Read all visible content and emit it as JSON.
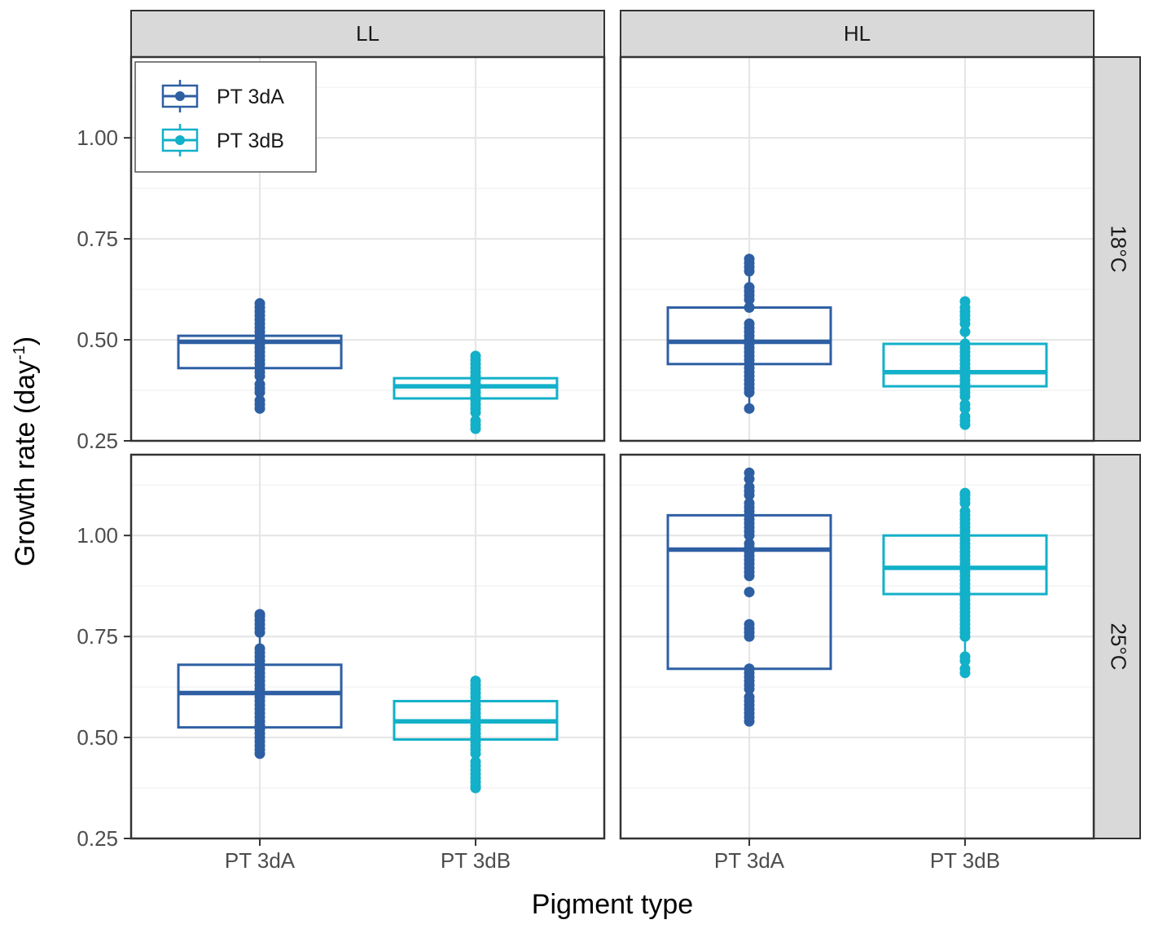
{
  "chart_data": {
    "type": "boxplot",
    "xlabel": "Pigment type",
    "ylabel_main": "Growth rate (day",
    "ylabel_sup": "-1",
    "ylabel_tail": ")",
    "y_ticks": [
      "0.25",
      "0.50",
      "0.75",
      "1.00"
    ],
    "y_tick_values": [
      0.25,
      0.5,
      0.75,
      1.0
    ],
    "categories": [
      "PT 3dA",
      "PT 3dB"
    ],
    "column_facets": [
      "LL",
      "HL"
    ],
    "row_facets": [
      "18°C",
      "25°C"
    ],
    "legend": [
      {
        "label": "PT 3dA",
        "color": "#2e5fa3"
      },
      {
        "label": "PT 3dB",
        "color": "#12b0c9"
      }
    ],
    "panels": [
      {
        "light": "LL",
        "temp": "18°C",
        "ylim": [
          0.25,
          1.2
        ],
        "groups": [
          {
            "category": "PT 3dA",
            "q1": 0.43,
            "median": 0.495,
            "q3": 0.51,
            "whisker_low": 0.33,
            "whisker_high": 0.59,
            "points": [
              0.33,
              0.34,
              0.35,
              0.37,
              0.38,
              0.39,
              0.41,
              0.42,
              0.43,
              0.44,
              0.45,
              0.46,
              0.47,
              0.48,
              0.49,
              0.5,
              0.51,
              0.52,
              0.53,
              0.54,
              0.55,
              0.56,
              0.57,
              0.58,
              0.59
            ]
          },
          {
            "category": "PT 3dB",
            "q1": 0.355,
            "median": 0.385,
            "q3": 0.405,
            "whisker_low": 0.28,
            "whisker_high": 0.46,
            "points": [
              0.28,
              0.29,
              0.3,
              0.32,
              0.33,
              0.34,
              0.35,
              0.36,
              0.37,
              0.38,
              0.39,
              0.4,
              0.41,
              0.42,
              0.43,
              0.44,
              0.45,
              0.46
            ]
          }
        ]
      },
      {
        "light": "HL",
        "temp": "18°C",
        "ylim": [
          0.25,
          1.2
        ],
        "groups": [
          {
            "category": "PT 3dA",
            "q1": 0.44,
            "median": 0.495,
            "q3": 0.58,
            "whisker_low": 0.33,
            "whisker_high": 0.7,
            "points": [
              0.33,
              0.37,
              0.38,
              0.39,
              0.4,
              0.41,
              0.42,
              0.43,
              0.44,
              0.45,
              0.46,
              0.47,
              0.48,
              0.49,
              0.5,
              0.51,
              0.52,
              0.53,
              0.54,
              0.58,
              0.6,
              0.61,
              0.62,
              0.63,
              0.67,
              0.68,
              0.69,
              0.7
            ]
          },
          {
            "category": "PT 3dB",
            "q1": 0.385,
            "median": 0.42,
            "q3": 0.49,
            "whisker_low": 0.29,
            "whisker_high": 0.595,
            "points": [
              0.29,
              0.3,
              0.31,
              0.33,
              0.34,
              0.36,
              0.37,
              0.38,
              0.39,
              0.4,
              0.41,
              0.42,
              0.43,
              0.44,
              0.45,
              0.46,
              0.47,
              0.48,
              0.49,
              0.52,
              0.54,
              0.55,
              0.56,
              0.57,
              0.58,
              0.595
            ]
          }
        ]
      },
      {
        "light": "LL",
        "temp": "25°C",
        "ylim": [
          0.25,
          1.2
        ],
        "groups": [
          {
            "category": "PT 3dA",
            "q1": 0.525,
            "median": 0.61,
            "q3": 0.68,
            "whisker_low": 0.46,
            "whisker_high": 0.805,
            "points": [
              0.46,
              0.47,
              0.48,
              0.49,
              0.5,
              0.51,
              0.52,
              0.53,
              0.54,
              0.55,
              0.56,
              0.57,
              0.58,
              0.59,
              0.6,
              0.61,
              0.62,
              0.63,
              0.64,
              0.65,
              0.66,
              0.67,
              0.68,
              0.69,
              0.7,
              0.71,
              0.72,
              0.76,
              0.77,
              0.78,
              0.79,
              0.8,
              0.805
            ]
          },
          {
            "category": "PT 3dB",
            "q1": 0.495,
            "median": 0.54,
            "q3": 0.59,
            "whisker_low": 0.375,
            "whisker_high": 0.64,
            "points": [
              0.375,
              0.38,
              0.39,
              0.4,
              0.41,
              0.42,
              0.43,
              0.44,
              0.46,
              0.47,
              0.48,
              0.49,
              0.5,
              0.51,
              0.52,
              0.53,
              0.54,
              0.55,
              0.56,
              0.57,
              0.58,
              0.59,
              0.6,
              0.61,
              0.62,
              0.63,
              0.64
            ]
          }
        ]
      },
      {
        "light": "HL",
        "temp": "25°C",
        "ylim": [
          0.25,
          1.2
        ],
        "groups": [
          {
            "category": "PT 3dA",
            "q1": 0.67,
            "median": 0.965,
            "q3": 1.05,
            "whisker_low": 0.54,
            "whisker_high": 1.155,
            "points": [
              0.54,
              0.55,
              0.56,
              0.57,
              0.58,
              0.59,
              0.6,
              0.62,
              0.63,
              0.64,
              0.65,
              0.66,
              0.67,
              0.75,
              0.76,
              0.77,
              0.78,
              0.86,
              0.9,
              0.91,
              0.92,
              0.93,
              0.94,
              0.95,
              0.96,
              0.97,
              0.98,
              1.0,
              1.01,
              1.02,
              1.03,
              1.04,
              1.05,
              1.06,
              1.07,
              1.08,
              1.1,
              1.11,
              1.12,
              1.14,
              1.155
            ]
          },
          {
            "category": "PT 3dB",
            "q1": 0.855,
            "median": 0.92,
            "q3": 1.0,
            "whisker_low": 0.66,
            "whisker_high": 1.105,
            "points": [
              0.66,
              0.67,
              0.69,
              0.7,
              0.75,
              0.76,
              0.77,
              0.78,
              0.79,
              0.8,
              0.81,
              0.82,
              0.83,
              0.84,
              0.85,
              0.86,
              0.87,
              0.88,
              0.89,
              0.9,
              0.91,
              0.92,
              0.93,
              0.94,
              0.95,
              0.96,
              0.97,
              0.98,
              0.99,
              1.0,
              1.01,
              1.02,
              1.03,
              1.04,
              1.05,
              1.06,
              1.08,
              1.09,
              1.1,
              1.105
            ]
          }
        ]
      }
    ]
  }
}
